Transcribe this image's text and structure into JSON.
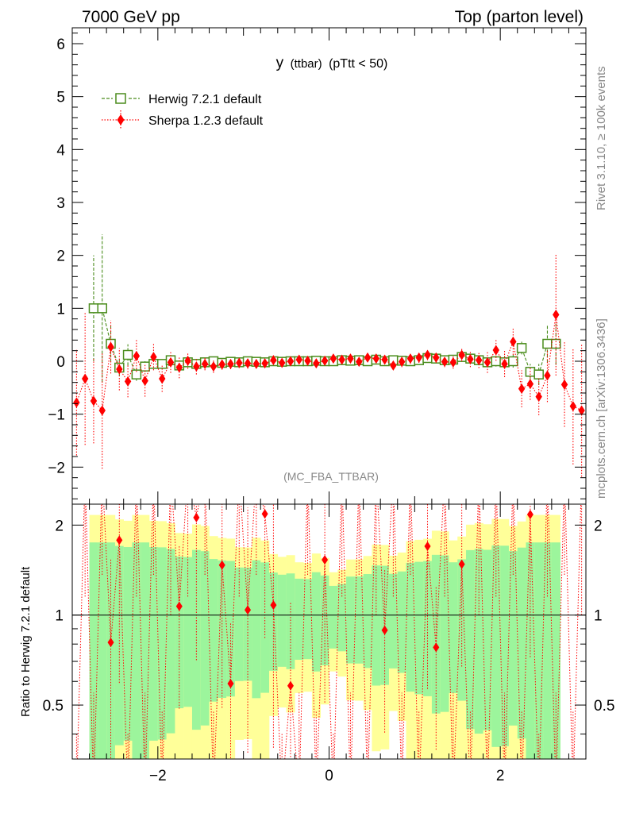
{
  "chart_data": [
    {
      "type": "line",
      "header_left": "7000 GeV pp",
      "header_right": "Top (parton level)",
      "title": "y (ttbar) (pTtt < 50)",
      "title_main": "y",
      "title_sub": "(ttbar)",
      "title_cut": "(pTtt < 50)",
      "watermark": "(MC_FBA_TTBAR)",
      "side_label_top": "Rivet 3.1.10, ≥ 100k events",
      "side_label_bottom": "mcplots.cern.ch [arXiv:1306.3436]",
      "xlim": [
        -3,
        3
      ],
      "ylim": [
        -2.7,
        6.3
      ],
      "yticks": [
        -2,
        -1,
        0,
        1,
        2,
        3,
        4,
        5,
        6
      ],
      "ytick_labels": [
        "−2",
        "−1",
        "0",
        "1",
        "2",
        "3",
        "4",
        "5",
        "6"
      ],
      "series": [
        {
          "name": "Herwig 7.2.1 default",
          "color": "#4a8c1c",
          "marker": "open-square",
          "line": "dashed",
          "x": [
            -2.75,
            -2.65,
            -2.55,
            -2.45,
            -2.35,
            -2.25,
            -2.15,
            -2.05,
            -1.95,
            -1.85,
            -1.75,
            -1.65,
            -1.55,
            -1.45,
            -1.35,
            -1.25,
            -1.15,
            -1.05,
            -0.95,
            -0.85,
            -0.75,
            -0.65,
            -0.55,
            -0.45,
            -0.35,
            -0.25,
            -0.15,
            -0.05,
            0.05,
            0.15,
            0.25,
            0.35,
            0.45,
            0.55,
            0.65,
            0.75,
            0.85,
            0.95,
            1.05,
            1.15,
            1.25,
            1.35,
            1.45,
            1.55,
            1.65,
            1.75,
            1.85,
            1.95,
            2.05,
            2.15,
            2.25,
            2.35,
            2.45,
            2.55,
            2.65
          ],
          "y": [
            1.0,
            1.0,
            0.33,
            -0.12,
            0.12,
            -0.25,
            -0.1,
            -0.05,
            -0.05,
            0.02,
            -0.08,
            -0.02,
            -0.05,
            -0.02,
            0.0,
            -0.03,
            -0.01,
            -0.02,
            0.0,
            -0.01,
            -0.02,
            0.0,
            -0.01,
            0.0,
            0.0,
            0.0,
            0.01,
            0.0,
            0.0,
            0.02,
            0.01,
            0.02,
            0.0,
            0.03,
            0.0,
            0.02,
            0.01,
            0.0,
            0.02,
            0.06,
            0.05,
            0.02,
            0.03,
            0.08,
            0.05,
            0.02,
            -0.02,
            0.0,
            -0.02,
            0.0,
            0.25,
            -0.2,
            -0.25,
            0.33,
            0.33
          ],
          "err": [
            1.0,
            1.4,
            0.35,
            0.15,
            0.2,
            0.12,
            0.1,
            0.08,
            0.08,
            0.06,
            0.06,
            0.06,
            0.05,
            0.05,
            0.05,
            0.05,
            0.05,
            0.05,
            0.04,
            0.04,
            0.04,
            0.04,
            0.04,
            0.04,
            0.04,
            0.04,
            0.04,
            0.04,
            0.04,
            0.04,
            0.04,
            0.04,
            0.04,
            0.04,
            0.04,
            0.04,
            0.04,
            0.05,
            0.05,
            0.05,
            0.05,
            0.05,
            0.06,
            0.06,
            0.06,
            0.08,
            0.08,
            0.1,
            0.12,
            0.12,
            0.12,
            0.15,
            0.2,
            0.35,
            0.4
          ]
        },
        {
          "name": "Sherpa 1.2.3 default",
          "color": "#ff0000",
          "marker": "filled-diamond",
          "line": "dotted",
          "x": [
            -2.95,
            -2.85,
            -2.75,
            -2.65,
            -2.55,
            -2.45,
            -2.35,
            -2.25,
            -2.15,
            -2.05,
            -1.95,
            -1.85,
            -1.75,
            -1.65,
            -1.55,
            -1.45,
            -1.35,
            -1.25,
            -1.15,
            -1.05,
            -0.95,
            -0.85,
            -0.75,
            -0.65,
            -0.55,
            -0.45,
            -0.35,
            -0.25,
            -0.15,
            -0.05,
            0.05,
            0.15,
            0.25,
            0.35,
            0.45,
            0.55,
            0.65,
            0.75,
            0.85,
            0.95,
            1.05,
            1.15,
            1.25,
            1.35,
            1.45,
            1.55,
            1.65,
            1.75,
            1.85,
            1.95,
            2.05,
            2.15,
            2.25,
            2.35,
            2.45,
            2.55,
            2.65,
            2.75,
            2.85,
            2.95
          ],
          "y": [
            -0.78,
            -0.33,
            -0.75,
            -0.93,
            0.27,
            -0.15,
            -0.38,
            0.1,
            -0.37,
            0.08,
            -0.33,
            -0.02,
            -0.12,
            0.01,
            -0.1,
            -0.05,
            -0.1,
            -0.06,
            -0.05,
            -0.03,
            -0.04,
            -0.05,
            -0.04,
            0.02,
            -0.03,
            0.0,
            0.03,
            0.01,
            -0.04,
            0.01,
            0.05,
            0.03,
            0.05,
            -0.01,
            0.07,
            0.05,
            0.03,
            -0.08,
            -0.01,
            0.05,
            0.07,
            0.12,
            0.07,
            -0.01,
            -0.02,
            0.12,
            0.04,
            0.02,
            -0.02,
            0.21,
            -0.05,
            0.37,
            -0.52,
            -0.43,
            -0.67,
            -0.27,
            0.88,
            -0.44,
            -0.85,
            -0.93
          ],
          "err": [
            1.0,
            1.25,
            0.8,
            1.1,
            0.5,
            0.4,
            0.3,
            0.3,
            0.3,
            0.25,
            0.25,
            0.2,
            0.2,
            0.15,
            0.15,
            0.12,
            0.12,
            0.1,
            0.1,
            0.1,
            0.1,
            0.08,
            0.08,
            0.08,
            0.08,
            0.08,
            0.08,
            0.08,
            0.08,
            0.08,
            0.08,
            0.08,
            0.08,
            0.08,
            0.08,
            0.08,
            0.08,
            0.08,
            0.1,
            0.1,
            0.1,
            0.1,
            0.1,
            0.1,
            0.12,
            0.12,
            0.15,
            0.15,
            0.2,
            0.2,
            0.25,
            0.25,
            0.35,
            0.3,
            0.35,
            0.5,
            1.15,
            0.8,
            1.1,
            1.25
          ]
        }
      ]
    },
    {
      "type": "line",
      "ylabel": "Ratio to Herwig 7.2.1 default",
      "xlim": [
        -3,
        3
      ],
      "ylim": [
        0.33,
        2.35
      ],
      "yscale": "log",
      "yticks": [
        0.5,
        1,
        2
      ],
      "ytick_labels": [
        "0.5",
        "1",
        "2"
      ],
      "xticks": [
        -2,
        0,
        2
      ],
      "xtick_labels": [
        "−2",
        "0",
        "2"
      ],
      "reference_line": 1,
      "bands": {
        "inner_color": "#9cf59c",
        "outer_color": "#ffff99",
        "x_range": [
          -2.8,
          2.7
        ]
      },
      "ratio_points": {
        "x": [
          -2.55,
          -2.45,
          -1.75,
          -1.55,
          -1.25,
          -1.15,
          -0.95,
          -0.75,
          -0.65,
          -0.45,
          -0.05,
          0.65,
          1.15,
          1.25,
          1.55,
          2.35
        ],
        "y": [
          0.81,
          1.78,
          1.07,
          2.12,
          1.47,
          0.59,
          1.04,
          2.18,
          1.08,
          0.58,
          1.53,
          0.89,
          1.7,
          0.78,
          1.48,
          2.17
        ]
      }
    }
  ]
}
